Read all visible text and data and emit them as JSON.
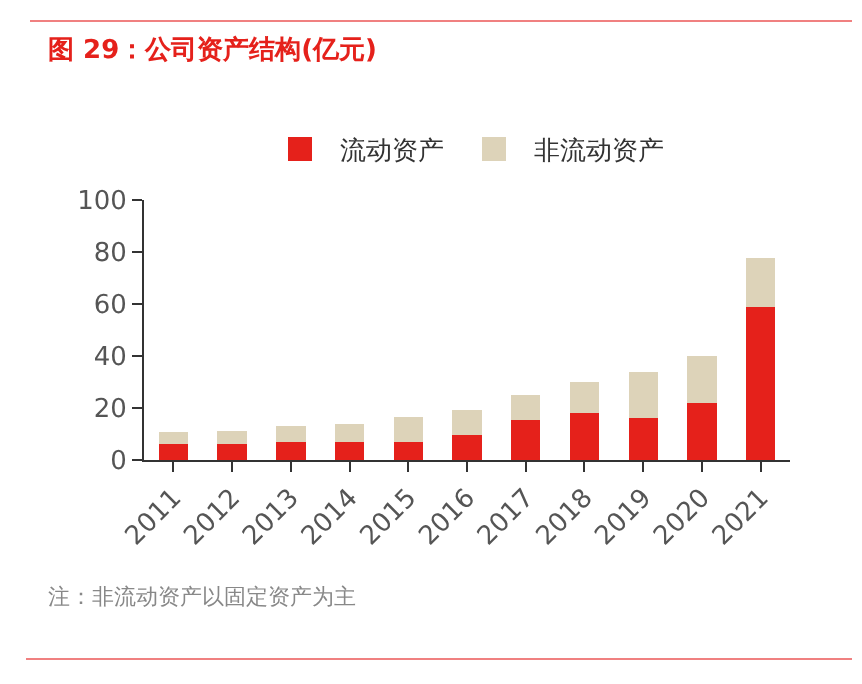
{
  "chart_data": {
    "type": "bar",
    "title": "图 29：公司资产结构(亿元)",
    "categories": [
      "2011",
      "2012",
      "2013",
      "2014",
      "2015",
      "2016",
      "2017",
      "2018",
      "2019",
      "2020",
      "2021"
    ],
    "series": [
      {
        "name": "流动资产",
        "color": "#e5211b",
        "values": [
          6.3,
          6.1,
          7.0,
          7.0,
          7.0,
          9.7,
          15.2,
          17.9,
          16.2,
          21.9,
          58.9
        ]
      },
      {
        "name": "非流动资产",
        "color": "#ddd3b9",
        "values": [
          4.5,
          5.1,
          5.9,
          6.7,
          9.7,
          9.5,
          9.7,
          12.1,
          17.6,
          18.0,
          18.7
        ]
      }
    ],
    "stacked": true,
    "ylim": [
      0,
      100
    ],
    "yticks": [
      0,
      20,
      40,
      60,
      80,
      100
    ],
    "grid": false,
    "legend": "top",
    "annotations": [
      "注：非流动资产以固定资产为主"
    ]
  }
}
